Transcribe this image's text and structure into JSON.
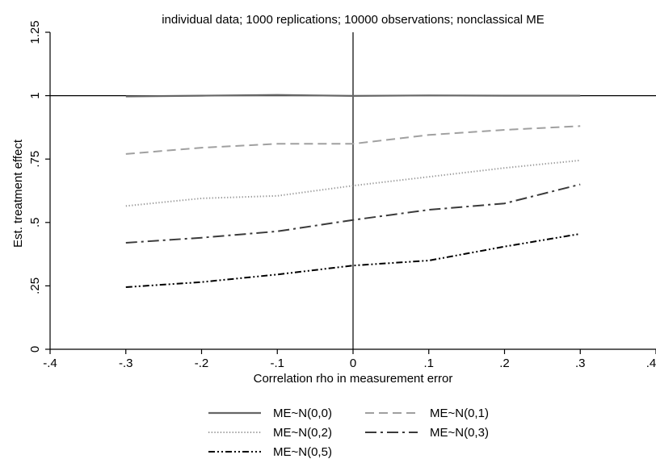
{
  "chart_data": {
    "type": "line",
    "title": "individual data; 1000 replications; 10000 observations; nonclassical ME",
    "xlabel": "Correlation rho in measurement error",
    "ylabel": "Est. treatment effect",
    "xlim": [
      -0.4,
      0.4
    ],
    "ylim": [
      0,
      1.25
    ],
    "xticks": [
      -0.4,
      -0.3,
      -0.2,
      -0.1,
      0,
      0.1,
      0.2,
      0.3,
      0.4
    ],
    "xtick_labels": [
      "-.4",
      "-.3",
      "-.2",
      "-.1",
      "0",
      ".1",
      ".2",
      ".3",
      ".4"
    ],
    "yticks": [
      0,
      0.25,
      0.5,
      0.75,
      1,
      1.25
    ],
    "ytick_labels": [
      "0",
      ".25",
      ".5",
      ".75",
      "1",
      "1.25"
    ],
    "reference_lines": {
      "x": 0,
      "y": 1
    },
    "grid": false,
    "legend_position": "bottom",
    "x": [
      -0.3,
      -0.2,
      -0.1,
      0,
      0.1,
      0.2,
      0.3
    ],
    "series": [
      {
        "name": "ME~N(0,0)",
        "values": [
          0.997,
          1.0,
          1.003,
          0.999,
          1.001,
          1.0,
          1.0
        ],
        "color": "#666666",
        "dash": "solid"
      },
      {
        "name": "ME~N(0,1)",
        "values": [
          0.77,
          0.795,
          0.81,
          0.81,
          0.845,
          0.865,
          0.88
        ],
        "color": "#a0a0a0",
        "dash": "dash"
      },
      {
        "name": "ME~N(0,2)",
        "values": [
          0.565,
          0.595,
          0.605,
          0.645,
          0.68,
          0.715,
          0.745
        ],
        "color": "#9a9a9a",
        "dash": "dot"
      },
      {
        "name": "ME~N(0,3)",
        "values": [
          0.42,
          0.44,
          0.465,
          0.51,
          0.55,
          0.575,
          0.65
        ],
        "color": "#3a3a3a",
        "dash": "longdashdot"
      },
      {
        "name": "ME~N(0,5)",
        "values": [
          0.245,
          0.265,
          0.295,
          0.33,
          0.35,
          0.405,
          0.455
        ],
        "color": "#000000",
        "dash": "dashdotdot"
      }
    ]
  }
}
